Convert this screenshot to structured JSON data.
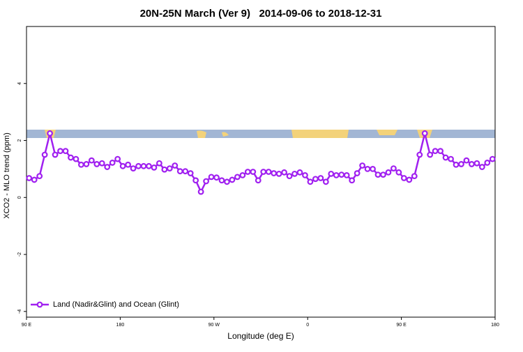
{
  "chart_data": {
    "type": "line",
    "title": "20N-25N March (Ver 9)   2014-09-06 to 2018-12-31",
    "x_label": "Longitude (deg E)",
    "y_label": "XCO2 - MLO trend (ppm)",
    "xlim": [
      90,
      540
    ],
    "xticks": [
      {
        "value": 90,
        "label": "90 E"
      },
      180,
      {
        "value": 270,
        "label": "90 W"
      },
      {
        "value": 360,
        "label": "0"
      },
      {
        "value": 450,
        "label": "90 E"
      },
      {
        "value": 540,
        "label": "180"
      }
    ],
    "ylim": [
      -4.2,
      6
    ],
    "yticks": [
      -4,
      -2,
      0,
      2,
      4
    ],
    "legend": "bottom-left",
    "x": [
      92.5,
      97.5,
      102.5,
      107.5,
      112.5,
      117.5,
      122.5,
      127.5,
      132.5,
      137.5,
      142.5,
      147.5,
      152.5,
      157.5,
      162.5,
      167.5,
      172.5,
      177.5,
      182.5,
      187.5,
      192.5,
      197.5,
      202.5,
      207.5,
      212.5,
      217.5,
      222.5,
      227.5,
      232.5,
      237.5,
      242.5,
      247.5,
      252.5,
      257.5,
      262.5,
      267.5,
      272.5,
      277.5,
      282.5,
      287.5,
      292.5,
      297.5,
      302.5,
      307.5,
      312.5,
      317.5,
      322.5,
      327.5,
      332.5,
      337.5,
      342.5,
      347.5,
      352.5,
      357.5,
      362.5,
      367.5,
      372.5,
      377.5,
      382.5,
      387.5,
      392.5,
      397.5,
      402.5,
      407.5,
      412.5,
      417.5,
      422.5,
      427.5,
      432.5,
      437.5,
      442.5,
      447.5,
      452.5,
      457.5,
      462.5,
      467.5,
      472.5,
      477.5,
      482.5,
      487.5,
      492.5,
      497.5,
      502.5,
      507.5,
      512.5,
      517.5,
      522.5,
      527.5,
      532.5,
      537.5
    ],
    "series": [
      {
        "name": "Land (Nadir&Glint) and Ocean (Glint)",
        "color": "#a020f0",
        "values": [
          0.68,
          0.62,
          0.75,
          1.5,
          2.25,
          1.5,
          1.63,
          1.63,
          1.4,
          1.35,
          1.15,
          1.17,
          1.3,
          1.17,
          1.2,
          1.07,
          1.22,
          1.35,
          1.1,
          1.15,
          1.02,
          1.1,
          1.1,
          1.1,
          1.05,
          1.2,
          0.98,
          1.02,
          1.12,
          0.92,
          0.92,
          0.85,
          0.6,
          0.2,
          0.57,
          0.72,
          0.7,
          0.6,
          0.55,
          0.62,
          0.72,
          0.78,
          0.9,
          0.9,
          0.6,
          0.9,
          0.9,
          0.85,
          0.83,
          0.88,
          0.75,
          0.83,
          0.88,
          0.78,
          0.55,
          0.65,
          0.68,
          0.55,
          0.83,
          0.78,
          0.8,
          0.78,
          0.6,
          0.85,
          1.12,
          1.0,
          1.0,
          0.8,
          0.8,
          0.88,
          1.02,
          0.88,
          0.68,
          0.62,
          0.75,
          1.5,
          2.25,
          1.5,
          1.63,
          1.63,
          1.4,
          1.35,
          1.15,
          1.17,
          1.3,
          1.17,
          1.2,
          1.07,
          1.22,
          1.35
        ]
      }
    ]
  }
}
